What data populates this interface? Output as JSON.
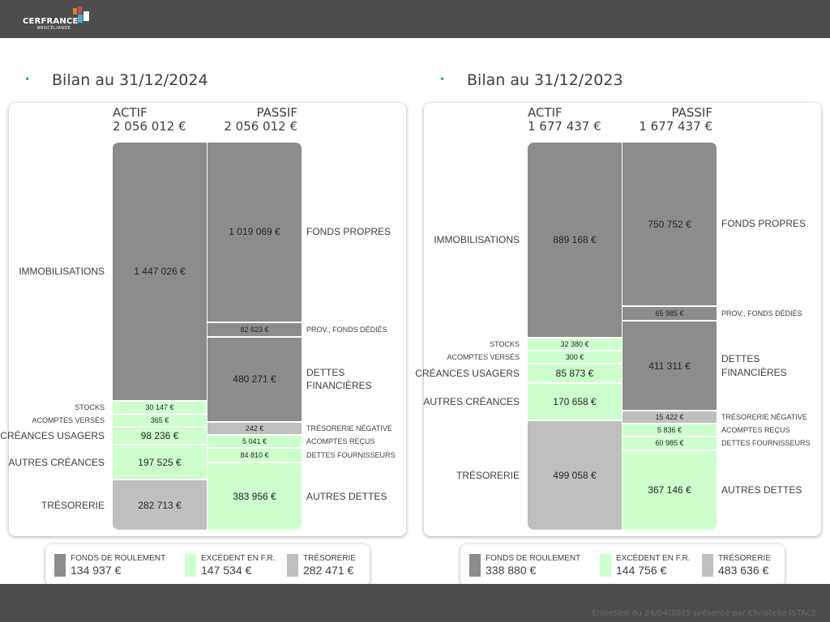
{
  "header": {
    "logo_text": "CERFRANCE",
    "logo_sub": "BROCÉLIANDE"
  },
  "footer": {
    "text": "Entretien du 24/04/2025 présenté par Christelle ISTACE"
  },
  "colors": {
    "gray": "#8c8c8c",
    "light_gray": "#bfbfbf",
    "green": "#ccffcc",
    "bar": "#4d4d4d",
    "bullet": "#2aa198"
  },
  "chart_data": [
    {
      "type": "bar",
      "title": "Bilan au 31/12/2024",
      "actif": {
        "label": "ACTIF",
        "total": "2 056 012 €",
        "items": [
          {
            "name": "IMMOBILISATIONS",
            "value": 1447026,
            "display": "1 447 026 €",
            "color": "gray"
          },
          {
            "name": "STOCKS",
            "value": 30147,
            "display": "30 147 €",
            "color": "green"
          },
          {
            "name": "ACOMPTES VERSÉS",
            "value": 365,
            "display": "365 €",
            "color": "green"
          },
          {
            "name": "CRÉANCES USAGERS",
            "value": 98236,
            "display": "98 236 €",
            "color": "green"
          },
          {
            "name": "AUTRES CRÉANCES",
            "value": 197525,
            "display": "197 525 €",
            "color": "green"
          },
          {
            "name": "TRÉSORERIE",
            "value": 282713,
            "display": "282 713 €",
            "color": "light"
          }
        ]
      },
      "passif": {
        "label": "PASSIF",
        "total": "2 056 012 €",
        "items": [
          {
            "name": "FONDS PROPRES",
            "value": 1019069,
            "display": "1 019 069 €",
            "color": "gray"
          },
          {
            "name": "PROV., FONDS DÉDIÉS",
            "value": 82623,
            "display": "82 623 €",
            "color": "gray"
          },
          {
            "name": "DETTES FINANCIÈRES",
            "value": 480271,
            "display": "480 271 €",
            "color": "gray"
          },
          {
            "name": "TRÉSORERIE NÉGATIVE",
            "value": 242,
            "display": "242 €",
            "color": "light"
          },
          {
            "name": "ACOMPTES REÇUS",
            "value": 5041,
            "display": "5 041 €",
            "color": "green"
          },
          {
            "name": "DETTES FOURNISSEURS",
            "value": 84810,
            "display": "84 810 €",
            "color": "green"
          },
          {
            "name": "AUTRES DETTES",
            "value": 383956,
            "display": "383 956 €",
            "color": "green"
          }
        ]
      },
      "legend": [
        {
          "label": "FONDS DE ROULEMENT",
          "value": "134 937 €",
          "color": "gray"
        },
        {
          "label": "EXCÉDENT EN F.R.",
          "value": "147 534 €",
          "color": "green"
        },
        {
          "label": "TRÉSORERIE",
          "value": "282 471 €",
          "color": "light"
        }
      ]
    },
    {
      "type": "bar",
      "title": "Bilan au 31/12/2023",
      "actif": {
        "label": "ACTIF",
        "total": "1 677 437 €",
        "items": [
          {
            "name": "IMMOBILISATIONS",
            "value": 889168,
            "display": "889 168 €",
            "color": "gray"
          },
          {
            "name": "STOCKS",
            "value": 32380,
            "display": "32 380 €",
            "color": "green"
          },
          {
            "name": "ACOMPTES VERSÉS",
            "value": 300,
            "display": "300 €",
            "color": "green"
          },
          {
            "name": "CRÉANCES USAGERS",
            "value": 85873,
            "display": "85 873 €",
            "color": "green"
          },
          {
            "name": "AUTRES CRÉANCES",
            "value": 170658,
            "display": "170 658 €",
            "color": "green"
          },
          {
            "name": "TRÉSORERIE",
            "value": 499058,
            "display": "499 058 €",
            "color": "light"
          }
        ]
      },
      "passif": {
        "label": "PASSIF",
        "total": "1 677 437 €",
        "items": [
          {
            "name": "FONDS PROPRES",
            "value": 750752,
            "display": "750 752 €",
            "color": "gray"
          },
          {
            "name": "PROV., FONDS DÉDIÉS",
            "value": 65985,
            "display": "65 985 €",
            "color": "gray"
          },
          {
            "name": "DETTES FINANCIÈRES",
            "value": 411311,
            "display": "411 311 €",
            "color": "gray"
          },
          {
            "name": "TRÉSORERIE NÉGATIVE",
            "value": 15422,
            "display": "15 422 €",
            "color": "light"
          },
          {
            "name": "ACOMPTES REÇUS",
            "value": 5836,
            "display": "5 836 €",
            "color": "green"
          },
          {
            "name": "DETTES FOURNISSEURS",
            "value": 60985,
            "display": "60 985 €",
            "color": "green"
          },
          {
            "name": "AUTRES DETTES",
            "value": 367146,
            "display": "367 146 €",
            "color": "green"
          }
        ]
      },
      "legend": [
        {
          "label": "FONDS DE ROULEMENT",
          "value": "338 880 €",
          "color": "gray"
        },
        {
          "label": "EXCÉDENT EN F.R.",
          "value": "144 756 €",
          "color": "green"
        },
        {
          "label": "TRÉSORERIE",
          "value": "483 636 €",
          "color": "light"
        }
      ]
    }
  ]
}
